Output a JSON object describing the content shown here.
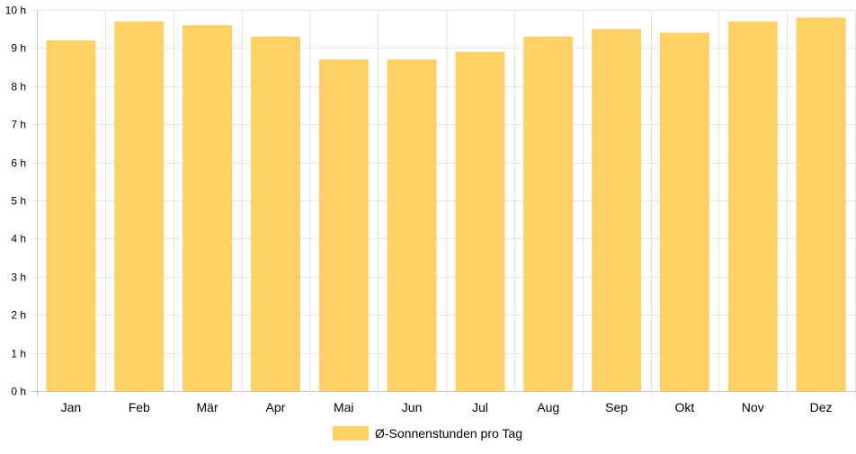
{
  "chart_data": {
    "type": "bar",
    "categories": [
      "Jan",
      "Feb",
      "Mär",
      "Apr",
      "Mai",
      "Jun",
      "Jul",
      "Aug",
      "Sep",
      "Okt",
      "Nov",
      "Dez"
    ],
    "series": [
      {
        "name": "Ø-Sonnenstunden pro Tag",
        "values": [
          9.2,
          9.7,
          9.6,
          9.3,
          8.7,
          8.7,
          8.9,
          9.3,
          9.5,
          9.4,
          9.7,
          9.8
        ],
        "color": "#fed166"
      }
    ],
    "yticks": [
      "0 h",
      "1 h",
      "2 h",
      "3 h",
      "4 h",
      "5 h",
      "6 h",
      "7 h",
      "8 h",
      "9 h",
      "10 h"
    ],
    "ylim": [
      0,
      10
    ],
    "grid": true,
    "legend_position": "bottom",
    "colors": {
      "grid": "#e6e6e6",
      "axis": "#c8c8c8",
      "text": "#000000"
    }
  }
}
